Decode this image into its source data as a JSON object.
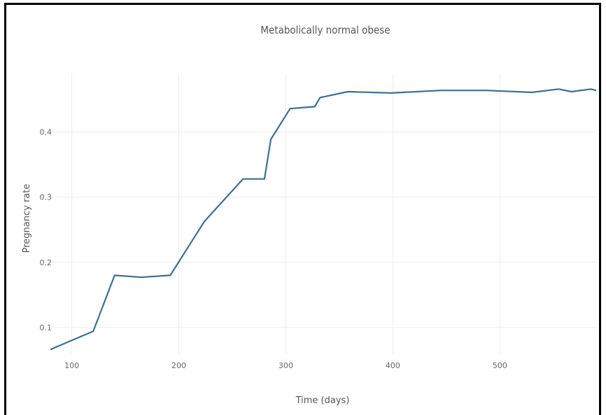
{
  "chart_data": {
    "type": "line",
    "title": "Metabolically normal obese",
    "xlabel": "Time (days)",
    "ylabel": "Pregnancy rate",
    "xlim": [
      80,
      590
    ],
    "ylim": [
      0.06,
      0.49
    ],
    "xticks": [
      100,
      200,
      300,
      400,
      500
    ],
    "yticks": [
      0.1,
      0.2,
      0.3,
      0.4
    ],
    "xtick_labels": [
      "100",
      "200",
      "300",
      "400",
      "500"
    ],
    "ytick_labels": [
      "0.1",
      "0.2",
      "0.3",
      "0.4"
    ],
    "grid": true,
    "series": [
      {
        "color": "#3d6f91",
        "x": [
          80,
          120,
          140,
          165,
          192,
          224,
          260,
          280,
          286,
          304,
          327,
          332,
          358,
          398,
          445,
          487,
          530,
          555,
          567,
          585,
          590
        ],
        "y": [
          0.066,
          0.094,
          0.18,
          0.177,
          0.18,
          0.263,
          0.328,
          0.328,
          0.389,
          0.436,
          0.439,
          0.453,
          0.462,
          0.46,
          0.464,
          0.464,
          0.461,
          0.466,
          0.462,
          0.466,
          0.464
        ]
      }
    ]
  }
}
